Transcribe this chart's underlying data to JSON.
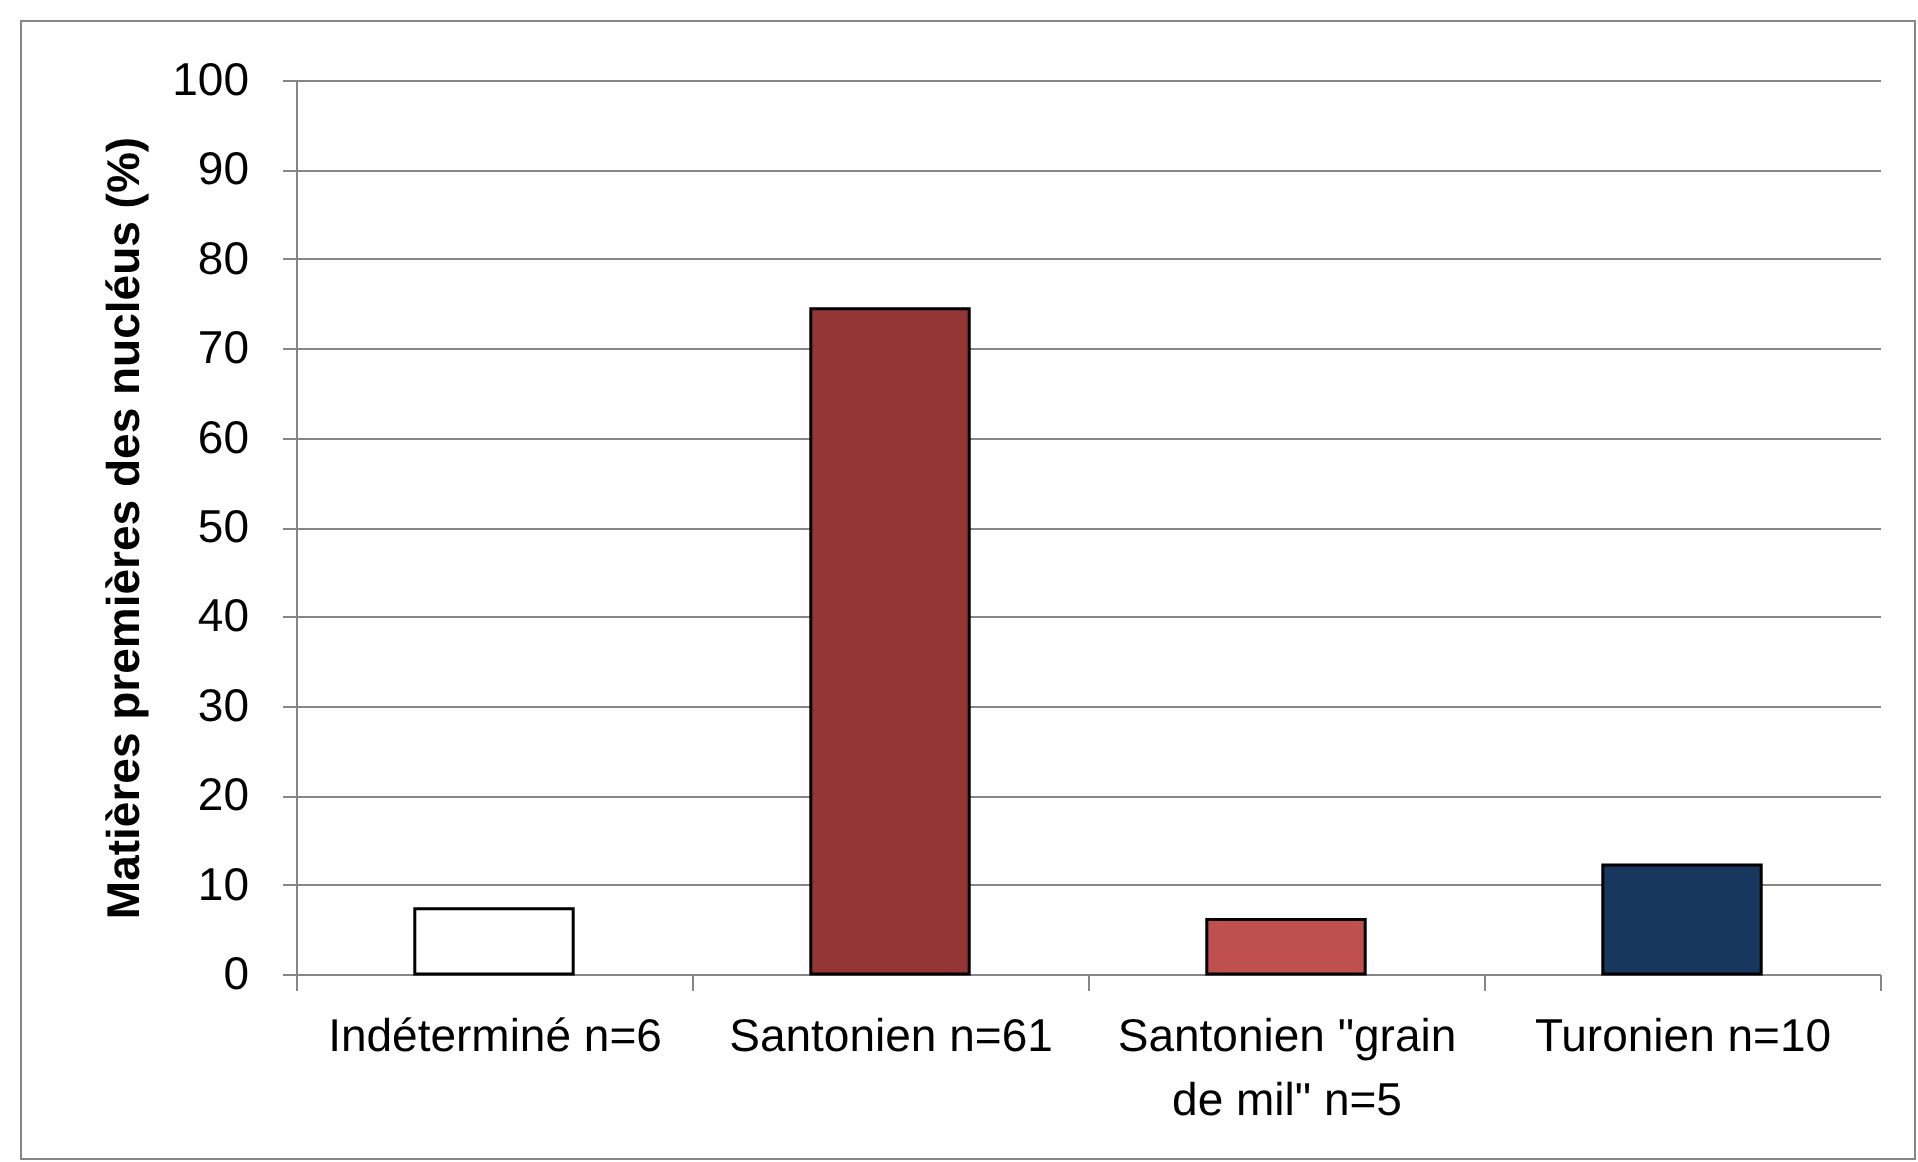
{
  "chart_data": {
    "type": "bar",
    "ylabel": "Matières premières des nucléus (%)",
    "categories": [
      "Indéterminé n=6",
      "Santonien n=61",
      "Santonien \"grain de mil\" n=5",
      "Turonien n=10"
    ],
    "values": [
      7.3,
      74.4,
      6.1,
      12.2
    ],
    "colors": [
      "#ffffff",
      "#943634",
      "#c0504d",
      "#17375e"
    ],
    "ylim": [
      0,
      100
    ],
    "yticks": [
      0,
      10,
      20,
      30,
      40,
      50,
      60,
      70,
      80,
      90,
      100
    ],
    "grid": "y"
  }
}
